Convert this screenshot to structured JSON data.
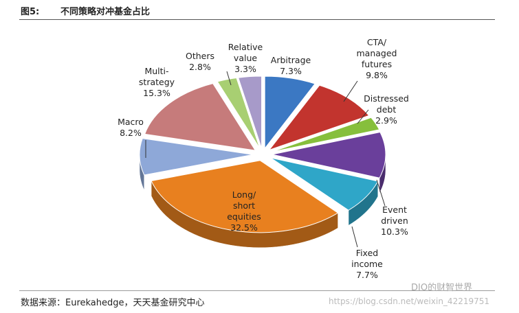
{
  "header": {
    "figure_label": "图5:",
    "title": "不同策略对冲基金占比"
  },
  "chart_data": {
    "type": "pie",
    "categories": [
      "Arbitrage",
      "CTA/ managed futures",
      "Distressed debt",
      "Event driven",
      "Fixed income",
      "Long/ short equities",
      "Macro",
      "Multi- strategy",
      "Others",
      "Relative value"
    ],
    "values": [
      7.3,
      9.8,
      2.9,
      10.3,
      7.7,
      32.5,
      8.2,
      15.3,
      2.8,
      3.3
    ],
    "value_labels": [
      "7.3%",
      "9.8%",
      "2.9%",
      "10.3%",
      "7.7%",
      "32.5%",
      "8.2%",
      "15.3%",
      "2.8%",
      "3.3%"
    ],
    "colors": [
      "#3b78c3",
      "#c2342e",
      "#86bf3c",
      "#6a3f9b",
      "#2fa6c8",
      "#e8801f",
      "#8ea8d8",
      "#c67b7b",
      "#a8cf72",
      "#a79ac9"
    ]
  },
  "source": "数据来源：Eurekahedge，天天基金研究中心",
  "watermark": {
    "name": "DIO的财智世界",
    "url": "https://blog.csdn.net/weixin_42219751"
  }
}
